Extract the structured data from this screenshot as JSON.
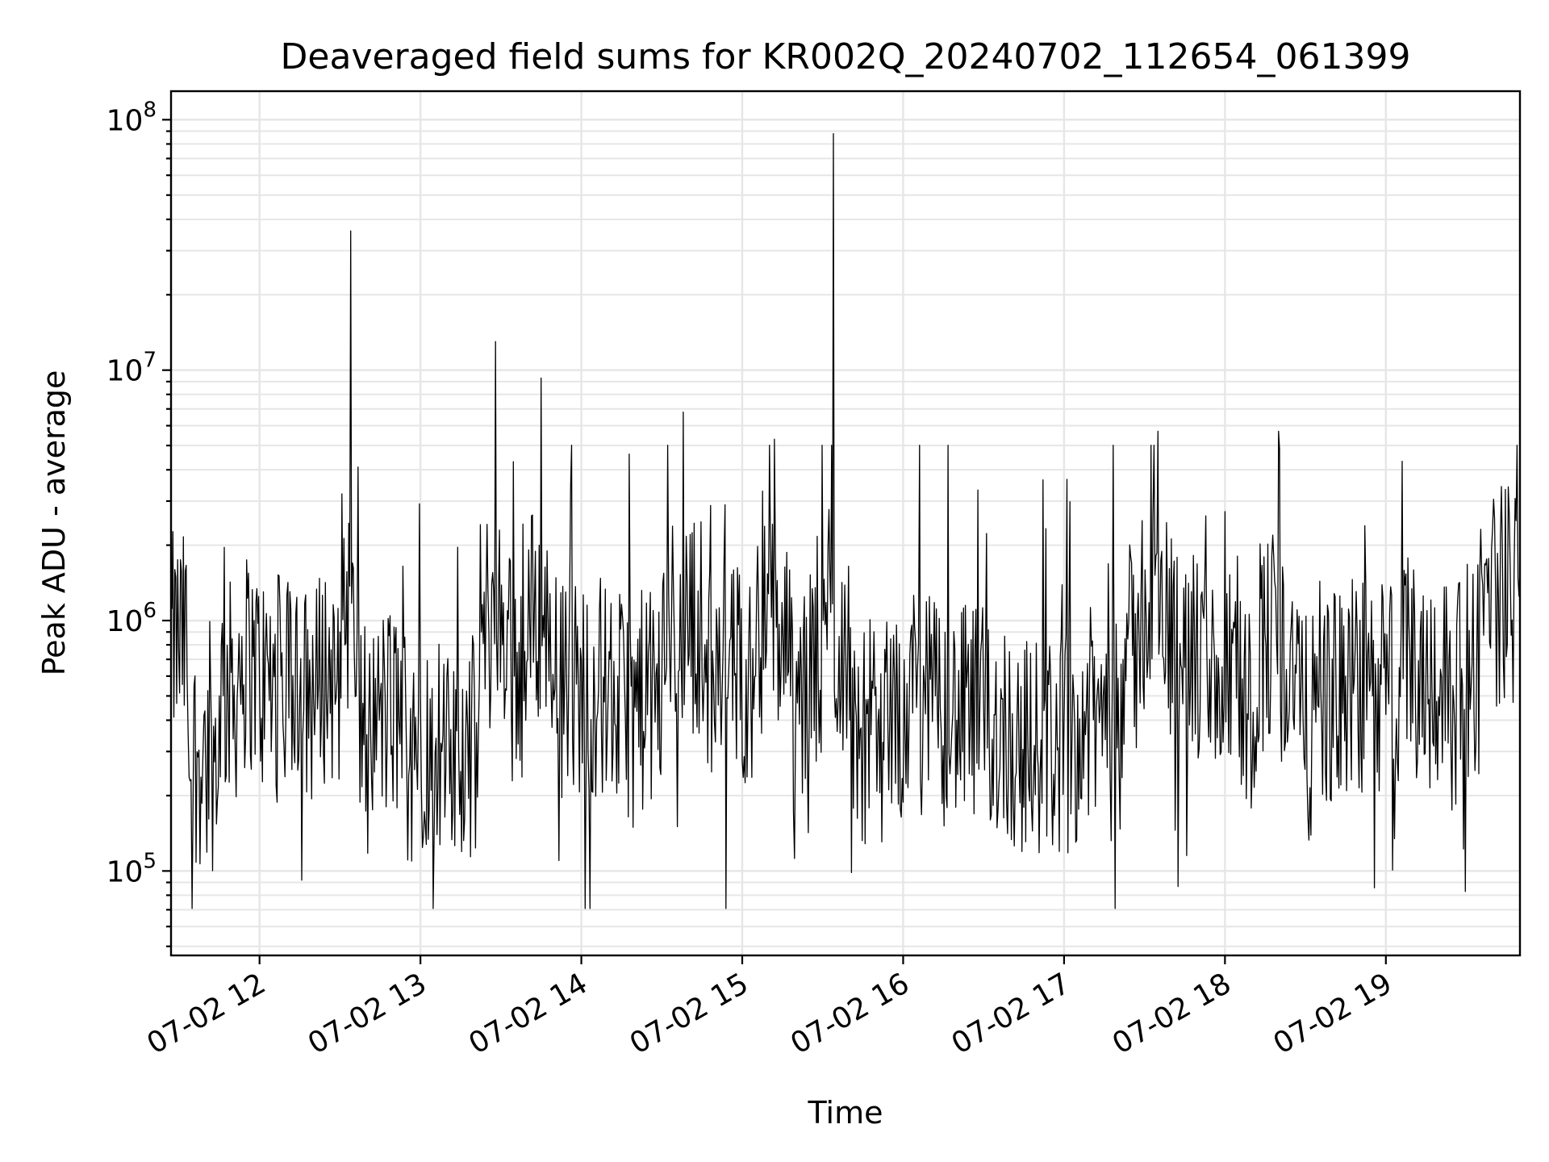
{
  "chart_data": {
    "type": "line",
    "title": "Deaveraged field sums for KR002Q_20240702_112654_061399",
    "xlabel": "Time",
    "ylabel": "Peak ADU - average",
    "yscale": "log",
    "ylim": [
      46000,
      130000000
    ],
    "xlim": [
      "2024-07-02 11:27",
      "2024-07-02 19:50"
    ],
    "x_ticks": [
      {
        "t": "2024-07-02 12:00",
        "label": "07-02 12"
      },
      {
        "t": "2024-07-02 13:00",
        "label": "07-02 13"
      },
      {
        "t": "2024-07-02 14:00",
        "label": "07-02 14"
      },
      {
        "t": "2024-07-02 15:00",
        "label": "07-02 15"
      },
      {
        "t": "2024-07-02 16:00",
        "label": "07-02 16"
      },
      {
        "t": "2024-07-02 17:00",
        "label": "07-02 17"
      },
      {
        "t": "2024-07-02 18:00",
        "label": "07-02 18"
      },
      {
        "t": "2024-07-02 19:00",
        "label": "07-02 19"
      }
    ],
    "y_ticks": [
      {
        "value": 100000,
        "base": "10",
        "exp": "5"
      },
      {
        "value": 1000000,
        "base": "10",
        "exp": "6"
      },
      {
        "value": 10000000,
        "base": "10",
        "exp": "7"
      },
      {
        "value": 100000000,
        "base": "10",
        "exp": "8"
      }
    ],
    "grid": true,
    "legend": "none",
    "line_color": "#000000",
    "series": [
      {
        "x": [
          "2024-07-02 11:27",
          "2024-07-02 11:33",
          "2024-07-02 11:40",
          "2024-07-02 11:45",
          "2024-07-02 11:52",
          "2024-07-02 11:58",
          "2024-07-02 12:00",
          "2024-07-02 12:08",
          "2024-07-02 12:15",
          "2024-07-02 12:22",
          "2024-07-02 12:30",
          "2024-07-02 12:34",
          "2024-07-02 12:36",
          "2024-07-02 12:40",
          "2024-07-02 12:45",
          "2024-07-02 12:52",
          "2024-07-02 13:00",
          "2024-07-02 13:08",
          "2024-07-02 13:15",
          "2024-07-02 13:22",
          "2024-07-02 13:28",
          "2024-07-02 13:35",
          "2024-07-02 13:40",
          "2024-07-02 13:45",
          "2024-07-02 13:52",
          "2024-07-02 14:00",
          "2024-07-02 14:10",
          "2024-07-02 14:20",
          "2024-07-02 14:30",
          "2024-07-02 14:38",
          "2024-07-02 14:45",
          "2024-07-02 14:55",
          "2024-07-02 15:05",
          "2024-07-02 15:12",
          "2024-07-02 15:18",
          "2024-07-02 15:25",
          "2024-07-02 15:32",
          "2024-07-02 15:34",
          "2024-07-02 15:40",
          "2024-07-02 15:48",
          "2024-07-02 15:55",
          "2024-07-02 16:05",
          "2024-07-02 16:12",
          "2024-07-02 16:20",
          "2024-07-02 16:30",
          "2024-07-02 16:40",
          "2024-07-02 16:50",
          "2024-07-02 17:00",
          "2024-07-02 17:08",
          "2024-07-02 17:15",
          "2024-07-02 17:22",
          "2024-07-02 17:28",
          "2024-07-02 17:35",
          "2024-07-02 17:45",
          "2024-07-02 17:55",
          "2024-07-02 18:05",
          "2024-07-02 18:12",
          "2024-07-02 18:20",
          "2024-07-02 18:28",
          "2024-07-02 18:35",
          "2024-07-02 18:45",
          "2024-07-02 18:55",
          "2024-07-02 19:05",
          "2024-07-02 19:15",
          "2024-07-02 19:25",
          "2024-07-02 19:30",
          "2024-07-02 19:35",
          "2024-07-02 19:42",
          "2024-07-02 19:50"
        ],
        "y": [
          2000000,
          600000,
          230000,
          500000,
          600000,
          1000000,
          550000,
          600000,
          500000,
          550000,
          900000,
          36000000,
          500000,
          350000,
          500000,
          400000,
          500000,
          300000,
          250000,
          600000,
          13000000,
          600000,
          700000,
          9300000,
          500000,
          700000,
          500000,
          450000,
          550000,
          6800000,
          600000,
          650000,
          600000,
          5300000,
          500000,
          450000,
          2000000,
          88000000,
          400000,
          350000,
          400000,
          450000,
          500000,
          400000,
          450000,
          350000,
          300000,
          400000,
          350000,
          600000,
          700000,
          800000,
          5700000,
          650000,
          700000,
          550000,
          450000,
          5700000,
          350000,
          450000,
          600000,
          500000,
          650000,
          700000,
          550000,
          500000,
          1500000,
          1200000,
          1600000
        ]
      }
    ]
  }
}
